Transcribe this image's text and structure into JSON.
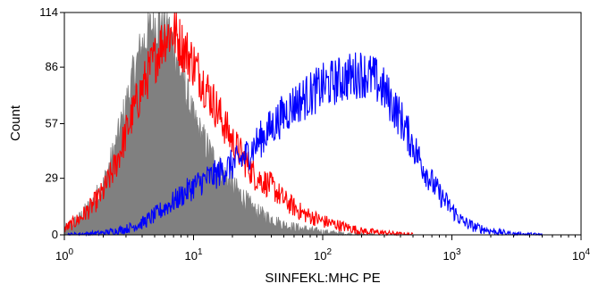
{
  "chart_data": {
    "type": "area",
    "title": "",
    "xlabel": "SIINFEKL:MHC PE",
    "ylabel": "Count",
    "x_scale": "log",
    "xlim": [
      1,
      10000
    ],
    "ylim": [
      0,
      114
    ],
    "x_ticks": [
      {
        "value": 1,
        "base": "10",
        "exp": "0"
      },
      {
        "value": 10,
        "base": "10",
        "exp": "1"
      },
      {
        "value": 100,
        "base": "10",
        "exp": "2"
      },
      {
        "value": 1000,
        "base": "10",
        "exp": "3"
      },
      {
        "value": 10000,
        "base": "10",
        "exp": "4"
      }
    ],
    "y_ticks": [
      0,
      29,
      57,
      86,
      114
    ],
    "grid": false,
    "series": [
      {
        "color": "#808080",
        "style": "filled",
        "points": [
          [
            1,
            3
          ],
          [
            1.3,
            8
          ],
          [
            1.6,
            15
          ],
          [
            2,
            25
          ],
          [
            2.5,
            45
          ],
          [
            3,
            65
          ],
          [
            3.5,
            84
          ],
          [
            4,
            96
          ],
          [
            4.5,
            103
          ],
          [
            5,
            108
          ],
          [
            5.5,
            110
          ],
          [
            6,
            109
          ],
          [
            7,
            97
          ],
          [
            8,
            82
          ],
          [
            9,
            70
          ],
          [
            10,
            58
          ],
          [
            12,
            48
          ],
          [
            15,
            36
          ],
          [
            20,
            25
          ],
          [
            25,
            18
          ],
          [
            30,
            12
          ],
          [
            40,
            8
          ],
          [
            50,
            5
          ],
          [
            70,
            3
          ],
          [
            100,
            1.5
          ],
          [
            150,
            0.5
          ],
          [
            250,
            0
          ]
        ]
      },
      {
        "color": "#ff0000",
        "style": "line",
        "points": [
          [
            1,
            3
          ],
          [
            1.3,
            8
          ],
          [
            1.6,
            14
          ],
          [
            2,
            22
          ],
          [
            2.5,
            36
          ],
          [
            3,
            52
          ],
          [
            3.5,
            65
          ],
          [
            4,
            75
          ],
          [
            5,
            90
          ],
          [
            6,
            102
          ],
          [
            7,
            104
          ],
          [
            8,
            98
          ],
          [
            10,
            88
          ],
          [
            12,
            78
          ],
          [
            15,
            65
          ],
          [
            20,
            48
          ],
          [
            25,
            38
          ],
          [
            30,
            30
          ],
          [
            40,
            25
          ],
          [
            50,
            18
          ],
          [
            70,
            11
          ],
          [
            100,
            7
          ],
          [
            150,
            4
          ],
          [
            200,
            2
          ],
          [
            300,
            1
          ],
          [
            500,
            0
          ]
        ]
      },
      {
        "color": "#0000ff",
        "style": "line",
        "points": [
          [
            1,
            0
          ],
          [
            2,
            1
          ],
          [
            3,
            3
          ],
          [
            4,
            6
          ],
          [
            5,
            10
          ],
          [
            6,
            14
          ],
          [
            7,
            17
          ],
          [
            8,
            20
          ],
          [
            10,
            25
          ],
          [
            12,
            28
          ],
          [
            15,
            31
          ],
          [
            20,
            36
          ],
          [
            25,
            40
          ],
          [
            30,
            46
          ],
          [
            40,
            55
          ],
          [
            50,
            62
          ],
          [
            60,
            67
          ],
          [
            80,
            72
          ],
          [
            100,
            76
          ],
          [
            130,
            79
          ],
          [
            160,
            81
          ],
          [
            200,
            83
          ],
          [
            250,
            80
          ],
          [
            300,
            74
          ],
          [
            400,
            60
          ],
          [
            500,
            46
          ],
          [
            600,
            35
          ],
          [
            700,
            27
          ],
          [
            800,
            21
          ],
          [
            1000,
            13
          ],
          [
            1200,
            7
          ],
          [
            1500,
            4
          ],
          [
            2000,
            2
          ],
          [
            3000,
            0.5
          ],
          [
            5000,
            0
          ]
        ]
      }
    ]
  }
}
